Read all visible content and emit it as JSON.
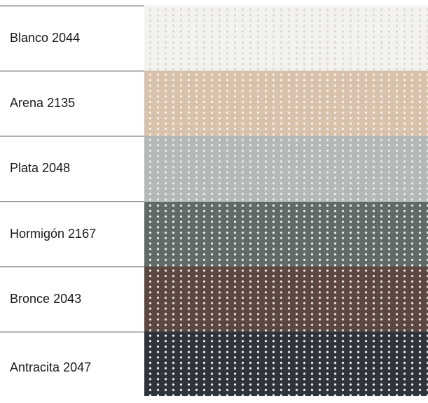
{
  "swatches": [
    {
      "name": "Blanco",
      "code": "2044",
      "color": "#f4f2ee",
      "dot": "#dcd8d0"
    },
    {
      "name": "Arena",
      "code": "2135",
      "color": "#d8c2ac",
      "dot": "#f8f1e8"
    },
    {
      "name": "Plata",
      "code": "2048",
      "color": "#b4b8b7",
      "dot": "#e8ebea"
    },
    {
      "name": "Hormigón",
      "code": "2167",
      "color": "#5f6a69",
      "dot": "#e8eeee"
    },
    {
      "name": "Bronce",
      "code": "2043",
      "color": "#5c4840",
      "dot": "#e9e1da"
    },
    {
      "name": "Antracita",
      "code": "2047",
      "color": "#2f333a",
      "dot": "#eef0f4"
    }
  ]
}
